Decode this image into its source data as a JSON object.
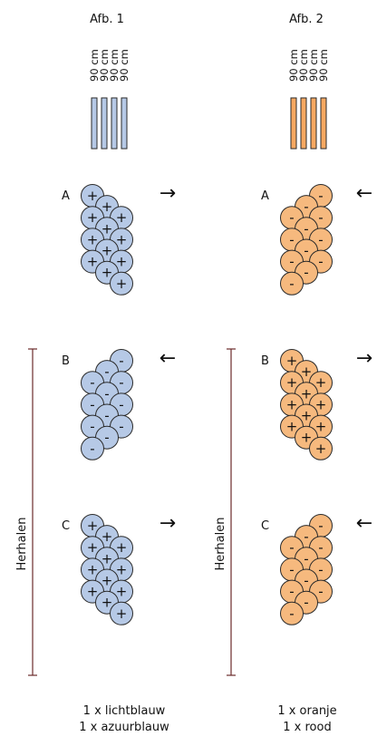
{
  "colors": {
    "blue_fill": "#b6c9e6",
    "orange_fill": "#f6b97e",
    "blue_strip": "#b6c9e6",
    "orange_strip": "#f6a861",
    "stroke": "#2a2a2a",
    "bracket": "#6b2b2b"
  },
  "figures": [
    {
      "title": "Afb. 1",
      "strip_labels": [
        "90 cm",
        "90 cm",
        "90 cm",
        "90 cm"
      ],
      "color_key": "blue",
      "rows": [
        {
          "label": "A",
          "arrow": "right-arrow",
          "arrow_glyph": "→",
          "sign": "+",
          "mirrored": false
        },
        {
          "label": "B",
          "arrow": "left-arrow",
          "arrow_glyph": "←",
          "sign": "-",
          "mirrored": true
        },
        {
          "label": "C",
          "arrow": "right-arrow",
          "arrow_glyph": "→",
          "sign": "+",
          "mirrored": false
        }
      ],
      "repeat_label": "Herhalen",
      "footer": [
        "1 x lichtblauw",
        "1 x azuurblauw"
      ]
    },
    {
      "title": "Afb. 2",
      "strip_labels": [
        "90 cm",
        "90 cm",
        "90 cm",
        "90 cm"
      ],
      "color_key": "orange",
      "rows": [
        {
          "label": "A",
          "arrow": "left-arrow",
          "arrow_glyph": "←",
          "sign": "-",
          "mirrored": true
        },
        {
          "label": "B",
          "arrow": "right-arrow",
          "arrow_glyph": "→",
          "sign": "+",
          "mirrored": false
        },
        {
          "label": "C",
          "arrow": "left-arrow",
          "arrow_glyph": "←",
          "sign": "-",
          "mirrored": true
        }
      ],
      "repeat_label": "Herhalen",
      "footer": [
        "1 x oranje",
        "1 x rood"
      ]
    }
  ]
}
